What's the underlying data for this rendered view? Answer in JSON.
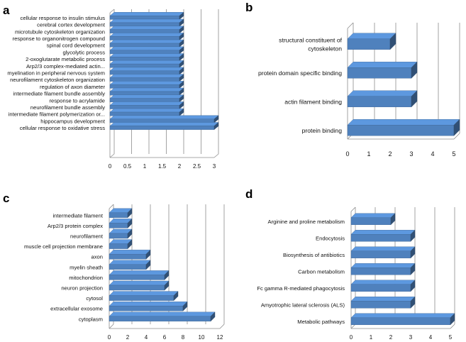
{
  "chart_data": [
    {
      "panel": "a",
      "type": "bar",
      "orientation": "horizontal",
      "style": "3d",
      "categories": [
        "cellular response to insulin stimulus",
        "cerebral cortex development",
        "microtubule cytoskeleton organization",
        "response to organonitrogen compound",
        "spinal cord development",
        "glycolytic process",
        "2-oxoglutarate metabolic process",
        "Arp2/3 complex-mediated actin...",
        "myelination in peripheral nervous system",
        "neurofilament cytoskeleton organization",
        "regulation of axon diameter",
        "intermediate filament bundle assembly",
        "response to acrylamide",
        "neurofilament bundle assembly",
        "intermediate filament polymerization or...",
        "hippocampus development",
        "cellular response to oxidative stress"
      ],
      "values": [
        2,
        2,
        2,
        2,
        2,
        2,
        2,
        2,
        2,
        2,
        2,
        2,
        2,
        2,
        2,
        3,
        3
      ],
      "xlim": [
        0,
        3
      ],
      "xticks": [
        "0",
        "0.5",
        "1",
        "1.5",
        "2",
        "2.5",
        "3"
      ],
      "xtick_values": [
        0,
        0.5,
        1,
        1.5,
        2,
        2.5,
        3
      ],
      "grid": true,
      "color": "#4F81BD"
    },
    {
      "panel": "b",
      "type": "bar",
      "orientation": "horizontal",
      "style": "3d",
      "categories": [
        [
          "structural constituent of",
          "cytoskeleton"
        ],
        [
          "protein domain specific binding"
        ],
        [
          "actin filament binding"
        ],
        [
          "protein binding"
        ]
      ],
      "values": [
        2,
        3,
        3,
        5
      ],
      "xlim": [
        0,
        5
      ],
      "xticks": [
        "0",
        "1",
        "2",
        "3",
        "4",
        "5"
      ],
      "xtick_values": [
        0,
        1,
        2,
        3,
        4,
        5
      ],
      "grid": true,
      "color": "#4F81BD"
    },
    {
      "panel": "c",
      "type": "bar",
      "orientation": "horizontal",
      "style": "3d",
      "categories": [
        "intermediate filament",
        "Arp2/3 protein complex",
        "neurofilament",
        "muscle cell projection membrane",
        "axon",
        "myelin sheath",
        "mitochondrion",
        "neuron projection",
        "cytosol",
        "extracellular exosome",
        "cytoplasm"
      ],
      "values": [
        2,
        2,
        2,
        2,
        4,
        4,
        6,
        6,
        7,
        8,
        11
      ],
      "xlim": [
        0,
        12
      ],
      "xticks": [
        "0",
        "2",
        "4",
        "6",
        "8",
        "10",
        "12"
      ],
      "xtick_values": [
        0,
        2,
        4,
        6,
        8,
        10,
        12
      ],
      "grid": true,
      "color": "#4F81BD"
    },
    {
      "panel": "d",
      "type": "bar",
      "orientation": "horizontal",
      "style": "3d",
      "categories": [
        "Arginine and proline metabolism",
        "Endocytosis",
        "Biosynthesis of antibiotics",
        "Carbon metabolism",
        "Fc gamma R-mediated phagocytosis",
        "Amyotrophic lateral sclerosis (ALS)",
        "Metabolic pathways"
      ],
      "values": [
        2,
        3,
        3,
        3,
        3,
        3,
        5
      ],
      "xlim": [
        0,
        5
      ],
      "xticks": [
        "0",
        "1",
        "2",
        "3",
        "4",
        "5"
      ],
      "xtick_values": [
        0,
        1,
        2,
        3,
        4,
        5
      ],
      "grid": true,
      "color": "#4F81BD"
    }
  ]
}
